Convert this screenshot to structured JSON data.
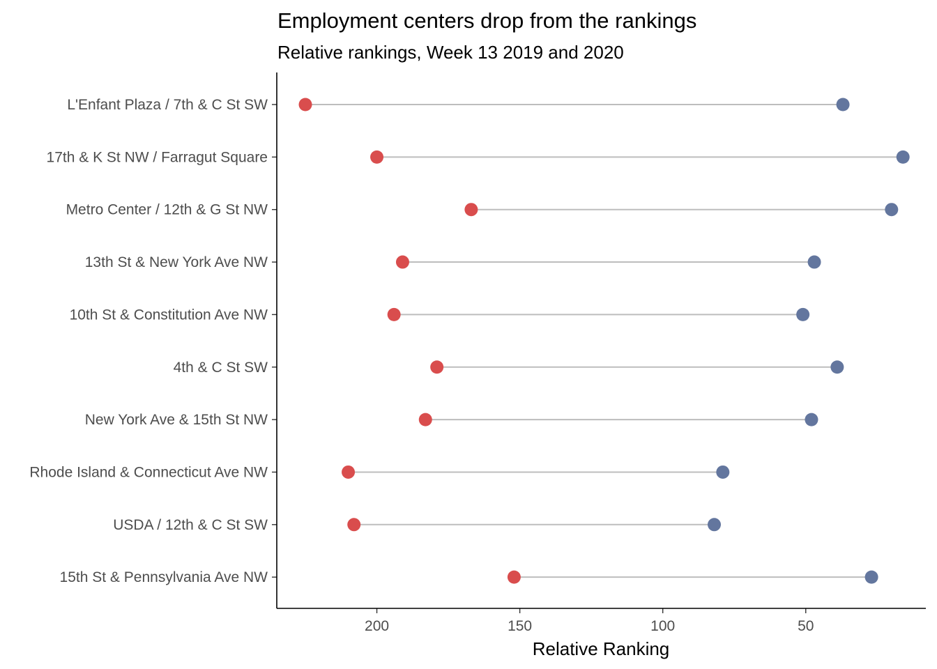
{
  "chart_data": {
    "type": "dumbbell",
    "title": "Employment centers drop from the rankings",
    "subtitle": "Relative rankings, Week 13 2019 and 2020",
    "xlabel": "Relative Ranking",
    "ylabel": "",
    "xlim": [
      235,
      8
    ],
    "x_reversed": true,
    "xticks": [
      200,
      150,
      100,
      50
    ],
    "grid": false,
    "legend": "none",
    "colors": {
      "2019": "#63769e",
      "2020": "#d94d4d",
      "segment": "#bdbdbd"
    },
    "categories": [
      "L'Enfant Plaza / 7th & C St SW",
      "17th & K St NW / Farragut Square",
      "Metro Center / 12th & G St NW",
      "13th St & New York Ave NW",
      "10th St & Constitution Ave NW",
      "4th & C St SW",
      "New York Ave & 15th St NW",
      "Rhode Island & Connecticut Ave NW",
      "USDA / 12th & C St SW",
      "15th St & Pennsylvania Ave NW"
    ],
    "series": [
      {
        "key": "2019",
        "values": [
          37,
          16,
          20,
          47,
          51,
          39,
          48,
          79,
          82,
          27
        ]
      },
      {
        "key": "2020",
        "values": [
          225,
          200,
          167,
          191,
          194,
          179,
          183,
          210,
          208,
          152
        ]
      }
    ]
  }
}
